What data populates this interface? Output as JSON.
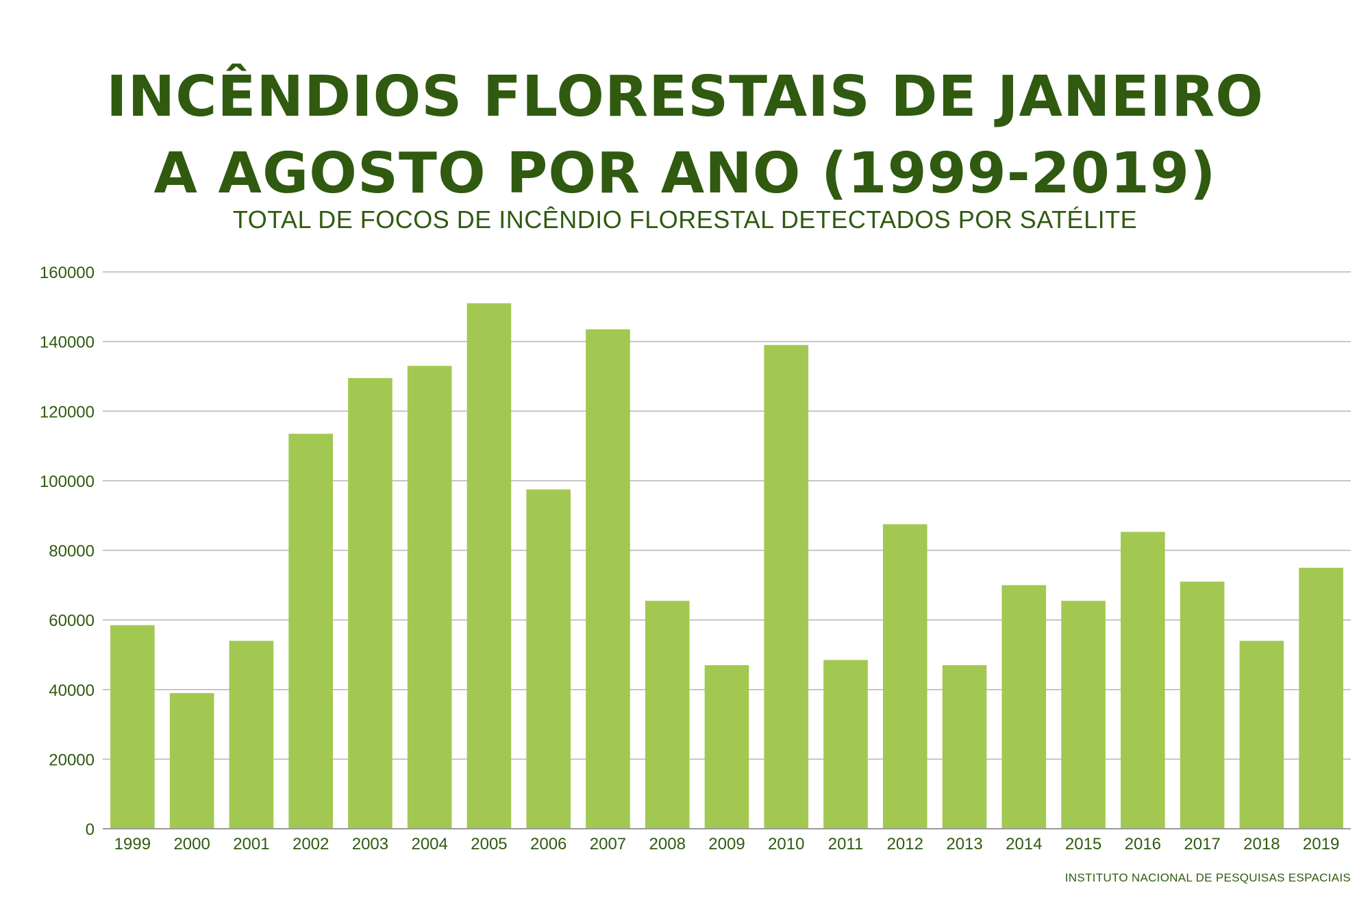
{
  "title_lines": [
    "INCÊNDIOS FLORESTAIS DE JANEIRO",
    "A AGOSTO POR ANO (1999-2019)"
  ],
  "subtitle": "TOTAL DE FOCOS DE INCÊNDIO FLORESTAL DETECTADOS POR SATÉLITE",
  "source": "INSTITUTO NACIONAL DE PESQUISAS ESPACIAIS",
  "colors": {
    "bar": "#a2c852",
    "text": "#2f5a0f",
    "grid": "#b5b5b5",
    "axis": "#9a9a9a"
  },
  "chart_data": {
    "type": "bar",
    "categories": [
      "1999",
      "2000",
      "2001",
      "2002",
      "2003",
      "2004",
      "2005",
      "2006",
      "2007",
      "2008",
      "2009",
      "2010",
      "2011",
      "2012",
      "2013",
      "2014",
      "2015",
      "2016",
      "2017",
      "2018",
      "2019"
    ],
    "values": [
      58500,
      39000,
      54000,
      113500,
      129500,
      133000,
      151000,
      97500,
      143500,
      65500,
      47000,
      139000,
      48500,
      87500,
      47000,
      70000,
      65500,
      85300,
      71000,
      54000,
      75000
    ],
    "ylim": [
      0,
      160000
    ],
    "yticks": [
      "0",
      "20000",
      "40000",
      "60000",
      "80000",
      "100000",
      "120000",
      "140000",
      "160000"
    ],
    "grid": true,
    "xlabel": "",
    "ylabel": ""
  }
}
